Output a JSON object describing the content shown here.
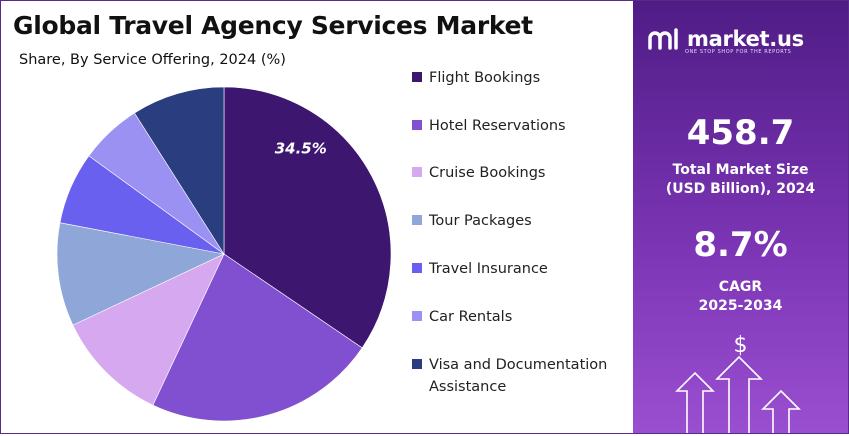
{
  "header": {
    "title": "Global Travel Agency Services Market",
    "subtitle": "Share, By Service Offering, 2024 (%)"
  },
  "chart_data": {
    "type": "pie",
    "title": "Global Travel Agency Services Market",
    "subtitle": "Share, By Service Offering, 2024 (%)",
    "categories": [
      "Flight Bookings",
      "Hotel Reservations",
      "Cruise Bookings",
      "Tour Packages",
      "Travel Insurance",
      "Car Rentals",
      "Visa and Documentation Assistance"
    ],
    "values": [
      34.5,
      22.5,
      11.0,
      10.0,
      7.0,
      6.0,
      9.0
    ],
    "colors": [
      "#3d1670",
      "#8150d1",
      "#d6a8ef",
      "#8fa6d9",
      "#6a60f0",
      "#9b91f2",
      "#2a3d7e"
    ],
    "data_labels": [
      "34.5%",
      "",
      "",
      "",
      "",
      "",
      ""
    ],
    "legend_position": "right",
    "start_angle": "12 o'clock, clockwise"
  },
  "legend": [
    {
      "label": "Flight Bookings",
      "color": "#3d1670"
    },
    {
      "label": "Hotel Reservations",
      "color": "#8150d1"
    },
    {
      "label": "Cruise Bookings",
      "color": "#d6a8ef"
    },
    {
      "label": "Tour Packages",
      "color": "#8fa6d9"
    },
    {
      "label": "Travel Insurance",
      "color": "#6a60f0"
    },
    {
      "label": "Car Rentals",
      "color": "#9b91f2"
    },
    {
      "label": "Visa and Documentation Assistance",
      "color": "#2a3d7e"
    }
  ],
  "panel": {
    "brand": "market.us",
    "tagline": "ONE STOP SHOP FOR THE REPORTS",
    "market_size_value": "458.7",
    "market_size_label_1": "Total Market Size",
    "market_size_label_2": "(USD Billion), 2024",
    "cagr_value": "8.7%",
    "cagr_label_1": "CAGR",
    "cagr_label_2": "2025-2034",
    "currency_symbol": "$"
  },
  "colors": {
    "panel_top": "#4f1c86",
    "panel_bottom": "#9a4fd0",
    "border": "#5a2a8a"
  }
}
